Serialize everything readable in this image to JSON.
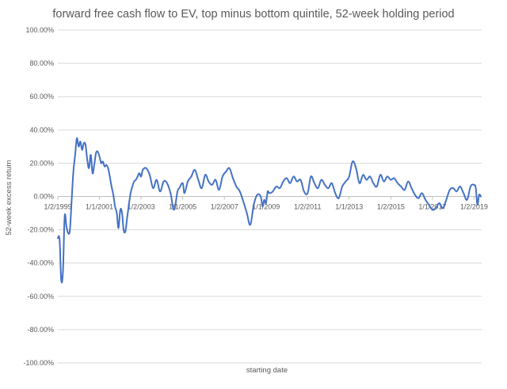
{
  "chart_data": {
    "type": "line",
    "title": "forward free cash flow to EV, top minus bottom quintile,  52-week holding period",
    "xlabel": "starting date",
    "ylabel": "52-week excess return",
    "y_format": "percent",
    "ylim": [
      -1.0,
      1.0
    ],
    "y_ticks": [
      1.0,
      0.8,
      0.6,
      0.4,
      0.2,
      0.0,
      -0.2,
      -0.4,
      -0.6,
      -0.8,
      -1.0
    ],
    "y_tick_labels": [
      "100.00%",
      "80.00%",
      "60.00%",
      "40.00%",
      "20.00%",
      "0.00%",
      "-20.00%",
      "-40.00%",
      "-60.00%",
      "-80.00%",
      "-100.00%"
    ],
    "x_range": [
      "1999-01-01",
      "2019-05-15"
    ],
    "x_ticks": [
      "1999-01-02",
      "2001-01-01",
      "2003-01-02",
      "2005-01-01",
      "2007-01-02",
      "2009-01-01",
      "2011-01-02",
      "2013-01-01",
      "2015-01-02",
      "2017-01-01",
      "2019-01-02"
    ],
    "x_tick_labels": [
      "1/2/1999",
      "1/1/2001",
      "1/2/2003",
      "1/1/2005",
      "1/2/2007",
      "1/1/2009",
      "1/2/2011",
      "1/1/2013",
      "1/2/2015",
      "1/1/2017",
      "1/2/2019"
    ],
    "gridlines": "horizontal",
    "line_color": "#4472C4",
    "series": [
      {
        "name": "",
        "x": [
          "1999-01-02",
          "1999-02-01",
          "1999-03-01",
          "1999-04-01",
          "1999-05-01",
          "1999-06-01",
          "1999-07-01",
          "1999-08-01",
          "1999-09-01",
          "1999-10-01",
          "1999-11-01",
          "1999-12-01",
          "2000-01-01",
          "2000-02-01",
          "2000-03-01",
          "2000-04-01",
          "2000-05-01",
          "2000-06-01",
          "2000-07-01",
          "2000-08-01",
          "2000-09-01",
          "2000-10-01",
          "2000-11-01",
          "2000-12-01",
          "2001-01-01",
          "2001-02-01",
          "2001-03-01",
          "2001-04-01",
          "2001-05-01",
          "2001-06-01",
          "2001-07-01",
          "2001-08-01",
          "2001-09-01",
          "2001-10-01",
          "2001-11-01",
          "2001-12-01",
          "2002-01-01",
          "2002-02-01",
          "2002-03-01",
          "2002-04-01",
          "2002-05-01",
          "2002-06-01",
          "2002-07-01",
          "2002-08-01",
          "2002-09-01",
          "2002-10-01",
          "2002-11-01",
          "2002-12-01",
          "2003-01-02",
          "2003-02-01",
          "2003-04-01",
          "2003-06-01",
          "2003-08-01",
          "2003-10-01",
          "2003-12-01",
          "2004-02-01",
          "2004-04-01",
          "2004-06-01",
          "2004-08-01",
          "2004-10-01",
          "2004-11-01",
          "2005-01-01",
          "2005-02-01",
          "2005-04-01",
          "2005-06-01",
          "2005-08-01",
          "2005-10-01",
          "2005-12-01",
          "2006-02-01",
          "2006-04-01",
          "2006-06-01",
          "2006-08-01",
          "2006-10-01",
          "2006-12-01",
          "2007-02-01",
          "2007-04-01",
          "2007-06-01",
          "2007-08-01",
          "2007-10-01",
          "2007-12-01",
          "2008-02-01",
          "2008-04-01",
          "2008-06-01",
          "2008-08-01",
          "2008-10-01",
          "2008-11-01",
          "2008-12-01",
          "2009-01-01",
          "2009-02-01",
          "2009-03-01",
          "2009-05-01",
          "2009-07-01",
          "2009-09-01",
          "2009-11-01",
          "2010-01-01",
          "2010-03-01",
          "2010-05-01",
          "2010-07-01",
          "2010-09-01",
          "2010-11-01",
          "2011-01-02",
          "2011-03-01",
          "2011-05-01",
          "2011-07-01",
          "2011-09-01",
          "2011-11-01",
          "2012-01-01",
          "2012-03-01",
          "2012-05-01",
          "2012-07-01",
          "2012-09-01",
          "2012-11-01",
          "2013-01-01",
          "2013-03-01",
          "2013-05-01",
          "2013-07-01",
          "2013-09-01",
          "2013-11-01",
          "2014-01-01",
          "2014-03-01",
          "2014-05-01",
          "2014-07-01",
          "2014-09-01",
          "2014-11-01",
          "2015-01-02",
          "2015-03-01",
          "2015-05-01",
          "2015-07-01",
          "2015-09-01",
          "2015-11-01",
          "2016-01-01",
          "2016-03-01",
          "2016-05-01",
          "2016-07-01",
          "2016-09-01",
          "2016-11-01",
          "2017-01-01",
          "2017-03-01",
          "2017-05-01",
          "2017-07-01",
          "2017-09-01",
          "2017-11-01",
          "2018-01-01",
          "2018-03-01",
          "2018-05-01",
          "2018-07-01",
          "2018-09-01",
          "2018-11-01",
          "2019-01-02",
          "2019-02-01",
          "2019-03-01",
          "2019-04-01",
          "2019-05-01"
        ],
        "y": [
          -0.25,
          -0.26,
          -0.5,
          -0.45,
          -0.12,
          -0.18,
          -0.22,
          -0.2,
          -0.02,
          0.15,
          0.25,
          0.35,
          0.3,
          0.33,
          0.28,
          0.32,
          0.31,
          0.22,
          0.17,
          0.25,
          0.14,
          0.19,
          0.26,
          0.27,
          0.24,
          0.2,
          0.21,
          0.18,
          0.19,
          0.17,
          0.12,
          0.06,
          0.01,
          -0.06,
          -0.1,
          -0.19,
          -0.08,
          -0.1,
          -0.2,
          -0.21,
          -0.13,
          -0.05,
          0.02,
          0.06,
          0.09,
          0.1,
          0.12,
          0.14,
          0.12,
          0.16,
          0.17,
          0.13,
          0.05,
          0.1,
          0.03,
          0.09,
          0.08,
          0.02,
          -0.08,
          0.03,
          0.05,
          0.08,
          0.02,
          0.09,
          0.12,
          0.16,
          0.1,
          0.05,
          0.13,
          0.09,
          0.07,
          0.1,
          0.04,
          0.12,
          0.15,
          0.17,
          0.11,
          0.06,
          0.03,
          -0.03,
          -0.1,
          -0.17,
          -0.05,
          0.01,
          0.0,
          -0.06,
          -0.02,
          -0.04,
          0.03,
          0.02,
          0.03,
          0.06,
          0.05,
          0.09,
          0.11,
          0.08,
          0.12,
          0.09,
          0.1,
          0.03,
          0.02,
          0.12,
          0.08,
          0.05,
          0.1,
          0.07,
          0.05,
          0.08,
          0.02,
          -0.01,
          0.06,
          0.09,
          0.12,
          0.21,
          0.17,
          0.08,
          0.13,
          0.1,
          0.12,
          0.08,
          0.06,
          0.13,
          0.09,
          0.12,
          0.1,
          0.11,
          0.08,
          0.06,
          0.04,
          0.09,
          0.05,
          0.01,
          -0.01,
          0.02,
          -0.02,
          -0.05,
          -0.08,
          -0.07,
          -0.04,
          -0.07,
          -0.02,
          0.04,
          0.05,
          0.03,
          0.06,
          0.02,
          -0.02,
          0.06,
          0.07,
          0.05,
          -0.05,
          0.01,
          0.0
        ]
      }
    ]
  }
}
